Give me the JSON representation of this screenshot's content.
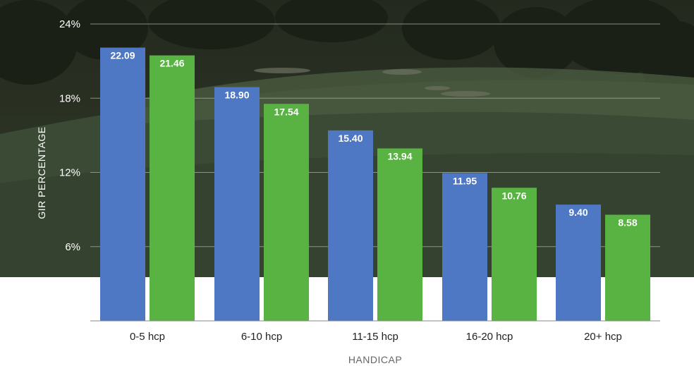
{
  "chart_data": {
    "type": "bar",
    "categories": [
      "0-5 hcp",
      "6-10 hcp",
      "11-15 hcp",
      "16-20 hcp",
      "20+ hcp"
    ],
    "series": [
      {
        "values": [
          22.09,
          18.9,
          15.4,
          11.95,
          9.4
        ],
        "value_labels": [
          "22.09",
          "18.90",
          "15.40",
          "11.95",
          "9.40"
        ]
      },
      {
        "values": [
          21.46,
          17.54,
          13.94,
          10.76,
          8.58
        ],
        "value_labels": [
          "21.46",
          "17.54",
          "13.94",
          "10.76",
          "8.58"
        ]
      }
    ],
    "xlabel": "HANDICAP",
    "ylabel": "GIR PERCENTAGE",
    "ylim": [
      0,
      24
    ],
    "yticks": [
      6,
      12,
      18,
      24
    ],
    "ytick_labels": [
      "6%",
      "12%",
      "18%",
      "24%"
    ],
    "grid": true,
    "legend": "none",
    "colors": {
      "series1": "#4e77c4",
      "series2": "#58b343",
      "grid": "#aab0a6",
      "axis": "#888888"
    },
    "background": "golf course photo (dark green, top portion)"
  }
}
